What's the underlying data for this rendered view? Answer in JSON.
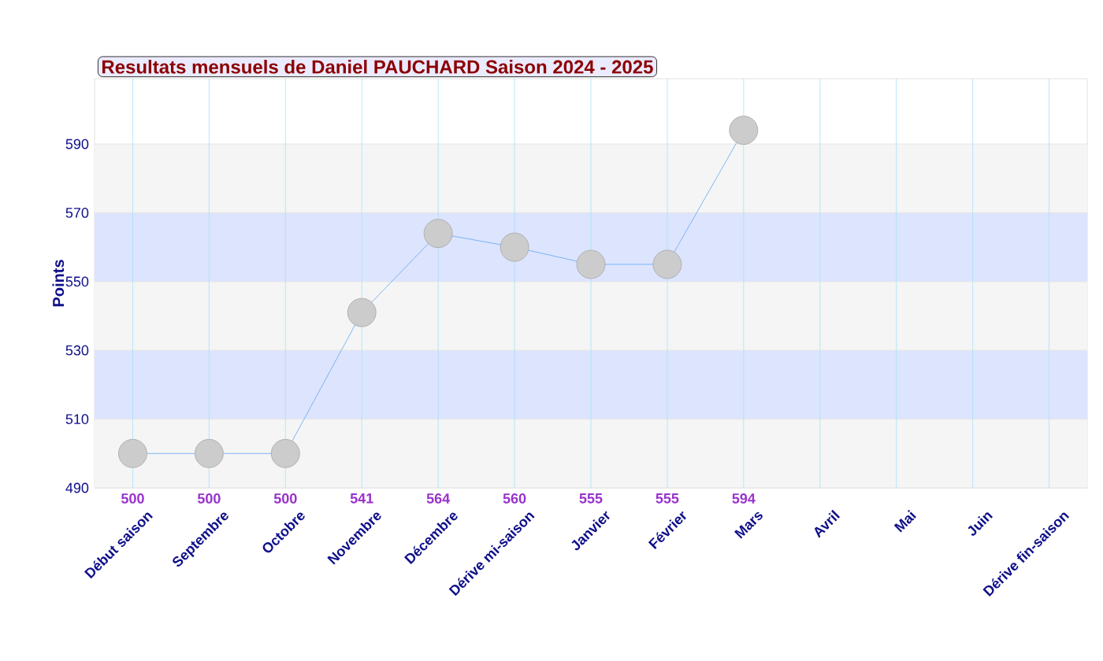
{
  "chart_data": {
    "type": "line",
    "title": "Resultats mensuels de Daniel PAUCHARD Saison 2024 - 2025",
    "ylabel": "Points",
    "categories": [
      "Début saison",
      "Septembre",
      "Octobre",
      "Novembre",
      "Décembre",
      "Dérive mi-saison",
      "Janvier",
      "Février",
      "Mars",
      "Avril",
      "Mai",
      "Juin",
      "Dérive fin-saison"
    ],
    "series": [
      {
        "color": "#5fa8f0",
        "values": [
          500,
          500,
          500,
          541,
          564,
          560,
          555,
          555,
          594,
          null,
          null,
          null,
          null
        ]
      }
    ],
    "ylim": [
      490,
      609
    ],
    "yticks": [
      490,
      510,
      530,
      550,
      570,
      590
    ],
    "bands": [
      {
        "axis": "y",
        "from": 490,
        "to": 510,
        "color": "#f5f5f5"
      },
      {
        "axis": "y",
        "from": 510,
        "to": 530,
        "color": "#dde4fe"
      },
      {
        "axis": "y",
        "from": 530,
        "to": 550,
        "color": "#f5f5f5"
      },
      {
        "axis": "y",
        "from": 550,
        "to": 570,
        "color": "#dde4fe"
      },
      {
        "axis": "y",
        "from": 570,
        "to": 590,
        "color": "#f5f5f5"
      }
    ],
    "grid": true,
    "marker": "circle",
    "line_style": "solid",
    "data_labels": true
  }
}
